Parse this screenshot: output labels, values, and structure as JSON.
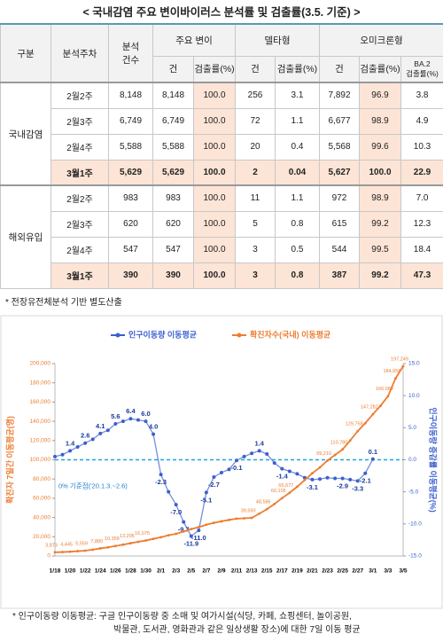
{
  "title": "< 국내감염 주요 변이바이러스 분석률 및 검출률(3.5. 기준) >",
  "table": {
    "header_top": [
      "구분",
      "분석주차",
      [
        "분석",
        "건수"
      ],
      "주요 변이",
      "델타형",
      "오미크론형"
    ],
    "header_sub": [
      "건",
      "검출률(%)",
      "건",
      "검출률(%)",
      "건",
      "검출률(%)",
      [
        "BA.2",
        "검출률(%)"
      ]
    ],
    "groups": [
      {
        "name": "국내감염",
        "rows": [
          [
            "2월2주",
            "8,148",
            "8,148",
            "100.0",
            "256",
            "3.1",
            "7,892",
            "96.9",
            "3.8"
          ],
          [
            "2월3주",
            "6,749",
            "6,749",
            "100.0",
            "72",
            "1.1",
            "6,677",
            "98.9",
            "4.9"
          ],
          [
            "2월4주",
            "5,588",
            "5,588",
            "100.0",
            "20",
            "0.4",
            "5,568",
            "99.6",
            "10.3"
          ],
          [
            "3월1주",
            "5,629",
            "5,629",
            "100.0",
            "2",
            "0.04",
            "5,627",
            "100.0",
            "22.9"
          ]
        ]
      },
      {
        "name": "해외유입",
        "rows": [
          [
            "2월2주",
            "983",
            "983",
            "100.0",
            "11",
            "1.1",
            "972",
            "98.9",
            "7.0"
          ],
          [
            "2월3주",
            "620",
            "620",
            "100.0",
            "5",
            "0.8",
            "615",
            "99.2",
            "12.3"
          ],
          [
            "2월4주",
            "547",
            "547",
            "100.0",
            "3",
            "0.5",
            "544",
            "99.5",
            "18.4"
          ],
          [
            "3월1주",
            "390",
            "390",
            "100.0",
            "3",
            "0.8",
            "387",
            "99.2",
            "47.3"
          ]
        ]
      }
    ]
  },
  "note": "* 전장유전체분석 기반 별도산출",
  "chart_data": {
    "type": "line",
    "legend": "top",
    "ylabel": "확진자 7일간 이동평균(명)",
    "y2label": "인구이동량 증감률 이동평균(%)",
    "annotation": "0% 기준점('20.1.3.~2.6)",
    "categories": [
      "1/18",
      null,
      "1/20",
      null,
      "1/22",
      null,
      "1/24",
      null,
      "1/26",
      null,
      "1/28",
      null,
      "1/30",
      null,
      "2/1",
      null,
      "2/3",
      null,
      "2/5",
      null,
      "2/7",
      null,
      "2/9",
      null,
      "2/11",
      null,
      "2/13",
      null,
      "2/15",
      null,
      "2/17",
      null,
      "2/19",
      null,
      "2/21",
      null,
      "2/23",
      null,
      "2/25",
      null,
      "2/27",
      null,
      "3/1",
      null,
      "3/3",
      null,
      "3/5"
    ],
    "series": [
      {
        "name": "인구이동량 이동평균",
        "color": "#3b5fd0",
        "axis": "y2",
        "values": [
          0.5,
          0.8,
          1.4,
          2.0,
          2.6,
          3.2,
          4.1,
          4.6,
          5.6,
          6.0,
          6.4,
          6.2,
          6.0,
          4.0,
          -2.3,
          -5.0,
          -7.0,
          -9.7,
          -11.9,
          -11.0,
          -5.1,
          -2.7,
          -2.0,
          -1.5,
          -0.1,
          0.5,
          1.0,
          1.4,
          0.9,
          -0.5,
          -1.4,
          -1.8,
          -2.2,
          -2.8,
          -3.1,
          -3.0,
          -2.8,
          -2.9,
          -2.9,
          -3.1,
          -3.3,
          -2.1,
          0.1,
          null,
          null,
          null,
          null
        ],
        "value_labels": [
          null,
          null,
          "1.4",
          null,
          "2.6",
          null,
          "4.1",
          null,
          "5.6",
          null,
          "6.4",
          null,
          "6.0",
          "4.0",
          "-2.3",
          null,
          "-7.0",
          "-9.7",
          "-11.9",
          "-11.0",
          "-5.1",
          "-2.7",
          null,
          null,
          "-0.1",
          null,
          null,
          "1.4",
          null,
          null,
          "-1.4",
          null,
          null,
          null,
          "-3.1",
          null,
          null,
          null,
          "-2.9",
          null,
          "-3.3",
          "-2.1",
          "0.1",
          null,
          null,
          null,
          null
        ]
      },
      {
        "name": "확진자수(국내) 이동평균",
        "color": "#ec7d31",
        "values": [
          3873,
          4100,
          4445,
          5000,
          5559,
          6600,
          7880,
          9000,
          10359,
          11800,
          13295,
          14700,
          16075,
          17800,
          19500,
          21500,
          23000,
          25500,
          28000,
          30000,
          32500,
          34500,
          36000,
          37500,
          38800,
          39200,
          39590,
          44000,
          48586,
          54000,
          60105,
          65677,
          72000,
          79000,
          86000,
          92000,
          99210,
          105000,
          110780,
          120000,
          129758,
          138000,
          147282,
          156000,
          166089,
          184658,
          197249
        ],
        "value_labels": [
          "3,873",
          null,
          "4,445",
          null,
          "5,559",
          null,
          "7,880",
          null,
          "10,359",
          null,
          "13,295",
          null,
          "16,075",
          null,
          null,
          null,
          null,
          null,
          null,
          null,
          null,
          null,
          null,
          null,
          null,
          null,
          "39,590",
          null,
          "48,586",
          null,
          "60,105",
          "65,677",
          null,
          null,
          null,
          null,
          "99,210",
          null,
          "110,780",
          null,
          "129,758",
          null,
          "147,282",
          null,
          "166,089",
          "184,658",
          "197,249"
        ]
      }
    ],
    "ylim": [
      0,
      200000
    ],
    "yticks": [
      0,
      {
        "value": 20000,
        "label": "20,000"
      },
      {
        "value": 40000,
        "label": "40,000"
      },
      {
        "value": 60000,
        "label": "60,000"
      },
      {
        "value": 80000,
        "label": "80,000"
      },
      {
        "value": 100000,
        "label": "100,000"
      },
      {
        "value": 120000,
        "label": "120,000"
      },
      {
        "value": 140000,
        "label": "140,000"
      },
      {
        "value": 160000,
        "label": "160,000"
      },
      {
        "value": 180000,
        "label": "180,000"
      },
      {
        "value": 200000,
        "label": "200,000"
      }
    ],
    "y2lim": [
      -15,
      15
    ],
    "y2ticks": [
      {
        "value": -15,
        "label": "-15.0"
      },
      {
        "value": -10,
        "label": "-10.0"
      },
      {
        "value": -5,
        "label": "-5.0"
      },
      {
        "value": 0,
        "label": "0.0"
      },
      {
        "value": 5,
        "label": "5.0"
      },
      {
        "value": 10,
        "label": "10.0"
      },
      {
        "value": 15,
        "label": "15.0"
      }
    ]
  },
  "footnote": [
    "* 인구이동량 이동평균: 구글 인구이동량 중 소매 및 여가시설(식당, 카페, 쇼핑센터, 놀이공원,",
    "박물관, 도서관, 영화관과 같은 일상생활 장소)에 대한 7일 이동 평균"
  ]
}
